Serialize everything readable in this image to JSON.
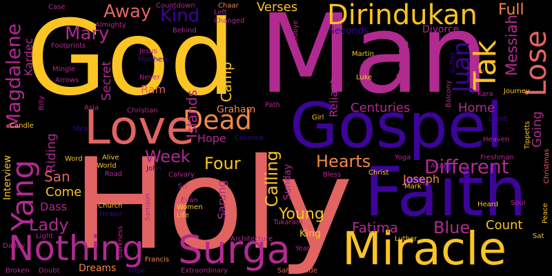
{
  "palette": {
    "yellow": "#fcc523",
    "orange": "#f48849",
    "salmon": "#e16462",
    "magenta": "#b12a90",
    "purple": "#6a00a8",
    "indigo": "#3c0498"
  },
  "words": {
    "god": "God",
    "man": "Man",
    "holy": "Holy",
    "gospel": "Gospel",
    "faith": "Faith",
    "love": "Love",
    "miracle": "Miracle",
    "surga": "Surga",
    "nothing": "Nothing",
    "dirindukan": "Dirindukan",
    "lose": "Lose",
    "tak": "Tak",
    "yang": "Yang",
    "dead": "Dead",
    "juan": "Juan",
    "magdalene": "Magdalene",
    "messiah": "Messiah",
    "mary": "Mary",
    "away": "Away",
    "kind": "Kind",
    "different": "Different",
    "verses": "Verses",
    "full": "Full",
    "week": "Week",
    "four": "Four",
    "hearts": "Hearts",
    "calling": "Calling",
    "fatima": "Fatima",
    "blue": "Blue",
    "count": "Count",
    "young": "Young",
    "lady": "Lady",
    "centuries": "Centuries",
    "home": "Home",
    "going": "Going",
    "kardec": "Kardec",
    "islands": "Islands",
    "camp": "Camp",
    "secret": "Secret",
    "riding": "Riding",
    "san": "San",
    "come": "Come",
    "dass": "Dass",
    "hope": "Hope",
    "graham": "Graham",
    "sarung": "Sarung",
    "sunday": "Sunday",
    "joseph": "Joseph",
    "tarung": "Tarung",
    "reliant": "Reliant",
    "ram": "Ram",
    "interview": "Interview",
    "divorce": "Divorce",
    "seconds": "Seconds",
    "king": "King",
    "dreams": "Dreams",
    "tukaram": "Tukaram",
    "countdown": "Countdown",
    "chaar": "Chaar",
    "left": "Left",
    "changed": "Changed",
    "case": "Case",
    "almighty": "Almighty",
    "behind": "Behind",
    "footprints": "Footprints",
    "jesus": "Jesus",
    "matthew": "Matthew",
    "mingle": "Mingle",
    "arrows": "Arrows",
    "never": "Never",
    "billy": "Billy",
    "asia": "Asia",
    "christian": "Christian",
    "candle": "Candle",
    "idea": "Idea",
    "word": "Word",
    "alive": "Alive",
    "world": "World",
    "road": "Road",
    "john": "John",
    "covered": "Covered",
    "path": "Path",
    "girl": "Girl",
    "goodbye": "Goodbye",
    "martin": "Martin",
    "luke": "Luke",
    "balcony": "Balcony",
    "suffer": "Suffer",
    "story": "Story",
    "kara": "Kara",
    "journey": "Journey",
    "lamb": "Lamb",
    "heaven": "Heaven",
    "tippetts": "Tippetts",
    "freshman": "Freshman",
    "christmas": "Christmas",
    "calvary": "Calvary",
    "bless": "Bless",
    "christ": "Christ",
    "yoga": "Yoga",
    "akal": "Akal",
    "long": "Long",
    "sri": "Sri",
    "evan": "Evan",
    "women": "Women",
    "life": "Life",
    "church": "Church",
    "healer": "Healer",
    "samson": "Samson",
    "mark": "Mark",
    "heard": "Heard",
    "soul": "Soul",
    "peace": "Peace",
    "daddy": "Daddy",
    "light": "Light",
    "darkness": "Darkness",
    "francis": "Francis",
    "architecture": "Architecture",
    "luther": "Luther",
    "year": "Year",
    "sat": "Sat",
    "broken": "Broken",
    "doubt": "Doubt",
    "pope": "Pope",
    "extraordinary": "Extraordinary",
    "sahibzaade": "Sahibzaade"
  }
}
